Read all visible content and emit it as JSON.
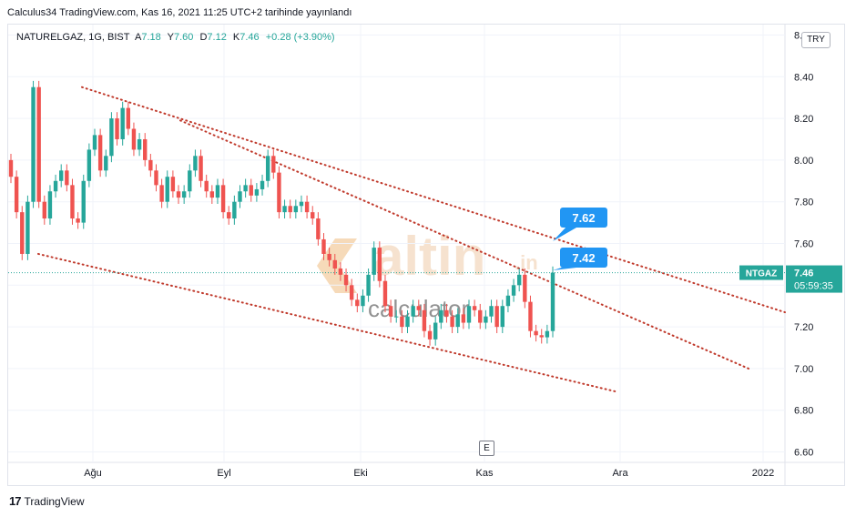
{
  "header": {
    "published": "Calculus34 TradingView.com, Kas 16, 2021 11:25 UTC+2 tarihinde yayınlandı"
  },
  "legend": {
    "symbol": "NATURELGAZ, 1G, BIST",
    "open_label": "A",
    "open": "7.18",
    "high_label": "Y",
    "high": "7.60",
    "low_label": "D",
    "low": "7.12",
    "close_label": "K",
    "close": "7.46",
    "change": "+0.28 (+3.90%)"
  },
  "currency_button": "TRY",
  "scale_button": "E",
  "price_tag": {
    "ticker": "NTGAZ",
    "price": "7.46",
    "countdown": "05:59:35"
  },
  "callouts": [
    {
      "text": "7.62"
    },
    {
      "text": "7.42"
    }
  ],
  "watermark": {
    "brand": "altin",
    "suffix": ".in",
    "sub": "calculator"
  },
  "footer": {
    "brand": "TradingView",
    "logo": "17"
  },
  "colors": {
    "up": "#26a69a",
    "down": "#ef5350",
    "trendline": "#c0392b",
    "callout": "#2196f3",
    "tag": "#26a69a"
  },
  "chart_data": {
    "type": "candlestick",
    "x_ticks": [
      "Ağu",
      "Eyl",
      "Eki",
      "Kas",
      "Ara",
      "2022"
    ],
    "y_ticks": [
      "6.60",
      "6.80",
      "7.00",
      "7.20",
      "7.40",
      "7.60",
      "7.80",
      "8.00",
      "8.20",
      "8.40",
      "8.60"
    ],
    "ylim": [
      6.55,
      8.65
    ],
    "last_price_line": 7.46,
    "close": [
      7.92,
      7.75,
      7.55,
      7.8,
      8.35,
      7.8,
      7.72,
      7.85,
      7.9,
      7.95,
      7.88,
      7.72,
      7.7,
      7.9,
      8.05,
      8.12,
      7.95,
      8.02,
      8.2,
      8.1,
      8.25,
      8.15,
      8.05,
      8.1,
      8.0,
      7.95,
      7.88,
      7.8,
      7.92,
      7.85,
      7.82,
      7.85,
      7.95,
      8.02,
      7.9,
      7.85,
      7.82,
      7.88,
      7.75,
      7.72,
      7.8,
      7.85,
      7.88,
      7.83,
      7.86,
      7.9,
      8.02,
      7.94,
      7.75,
      7.78,
      7.75,
      7.78,
      7.8,
      7.75,
      7.72,
      7.62,
      7.55,
      7.52,
      7.48,
      7.45,
      7.4,
      7.33,
      7.3,
      7.35,
      7.45,
      7.58,
      7.42,
      7.3,
      7.25,
      7.25,
      7.2,
      7.25,
      7.3,
      7.28,
      7.18,
      7.14,
      7.22,
      7.28,
      7.25,
      7.2,
      7.26,
      7.22,
      7.3,
      7.28,
      7.22,
      7.25,
      7.3,
      7.2,
      7.3,
      7.35,
      7.4,
      7.45,
      7.32,
      7.18,
      7.16,
      7.15,
      7.18,
      7.46
    ],
    "open": [
      8.0,
      7.92,
      7.75,
      7.55,
      7.8,
      8.35,
      7.8,
      7.72,
      7.85,
      7.9,
      7.95,
      7.88,
      7.72,
      7.7,
      7.9,
      8.05,
      8.12,
      7.95,
      8.02,
      8.2,
      8.1,
      8.25,
      8.15,
      8.05,
      8.1,
      8.0,
      7.95,
      7.88,
      7.8,
      7.92,
      7.85,
      7.82,
      7.85,
      7.95,
      8.02,
      7.9,
      7.85,
      7.82,
      7.88,
      7.75,
      7.72,
      7.8,
      7.85,
      7.88,
      7.83,
      7.86,
      7.9,
      8.02,
      7.94,
      7.75,
      7.78,
      7.75,
      7.78,
      7.8,
      7.75,
      7.72,
      7.62,
      7.55,
      7.52,
      7.48,
      7.45,
      7.4,
      7.33,
      7.3,
      7.35,
      7.45,
      7.58,
      7.42,
      7.3,
      7.25,
      7.25,
      7.2,
      7.25,
      7.3,
      7.28,
      7.18,
      7.14,
      7.22,
      7.28,
      7.25,
      7.2,
      7.26,
      7.22,
      7.3,
      7.28,
      7.22,
      7.25,
      7.3,
      7.2,
      7.3,
      7.35,
      7.4,
      7.45,
      7.32,
      7.18,
      7.16,
      7.15,
      7.18
    ]
  }
}
